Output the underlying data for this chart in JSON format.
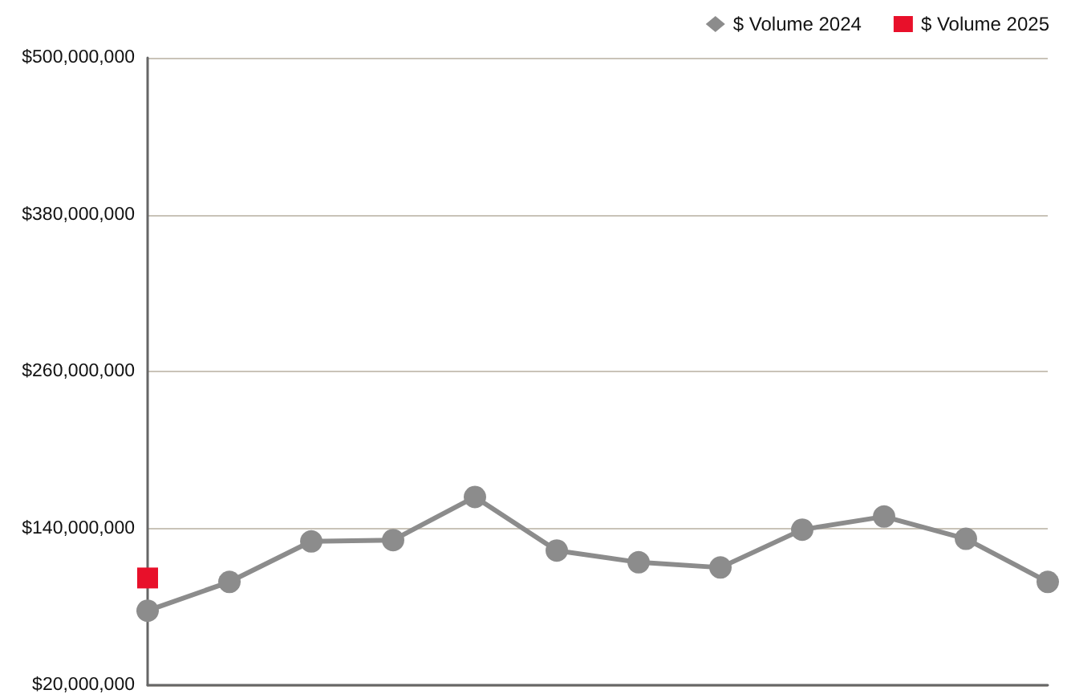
{
  "chart_data": {
    "type": "line",
    "categories": [
      null,
      null,
      null,
      null,
      null,
      null,
      null,
      null,
      null,
      null,
      null,
      null
    ],
    "series": [
      {
        "name": "$ Volume 2024",
        "color": "#8c8c8c",
        "marker": "circle",
        "values": [
          77000000,
          99000000,
          130000000,
          131000000,
          164000000,
          123000000,
          114000000,
          110000000,
          139000000,
          149000000,
          132000000,
          99000000
        ]
      },
      {
        "name": "$ Volume 2025",
        "color": "#e8102a",
        "marker": "square",
        "values": [
          102000000,
          null,
          null,
          null,
          null,
          null,
          null,
          null,
          null,
          null,
          null,
          null
        ]
      }
    ],
    "ylim": [
      20000000,
      500000000
    ],
    "yticks": [
      {
        "value": 20000000,
        "label": "$20,000,000"
      },
      {
        "value": 140000000,
        "label": "$140,000,000"
      },
      {
        "value": 260000000,
        "label": "$260,000,000"
      },
      {
        "value": 380000000,
        "label": "$380,000,000"
      },
      {
        "value": 500000000,
        "label": "$500,000,000"
      }
    ],
    "grid": "y",
    "legend": "top right",
    "line_style": "solid"
  }
}
